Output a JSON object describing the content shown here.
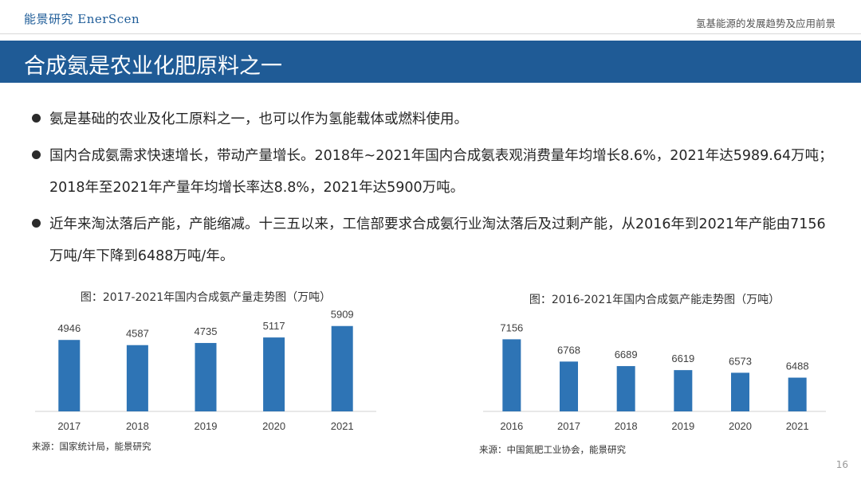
{
  "header": {
    "logo_text": "能景研究 EnerScen",
    "report_title": "氢基能源的发展趋势及应用前景"
  },
  "slide": {
    "title": "合成氨是农业化肥原料之一",
    "bullets": [
      {
        "text": "氨是基础的农业及化工原料之一，也可以作为氢能载体或燃料使用。"
      },
      {
        "text": "国内合成氨需求快速增长，带动产量增长。2018年~2021年国内合成氨表观消费量年均增长8.6%，2021年达5989.64万吨；2018年至2021年产量年均增长率达8.8%，2021年达5900万吨。"
      },
      {
        "text": "近年来淘汰落后产能，产能缩减。十三五以来，工信部要求合成氨行业淘汰落后及过剩产能，从2016年到2021年产能由7156万吨/年下降到6488万吨/年。"
      }
    ],
    "page_number": "16"
  },
  "chart_data": [
    {
      "type": "bar",
      "title": "图：2017-2021年国内合成氨产量走势图（万吨）",
      "categories": [
        "2017",
        "2018",
        "2019",
        "2020",
        "2021"
      ],
      "values": [
        4946,
        4587,
        4735,
        5117,
        5909
      ],
      "ylim": [
        0,
        6500
      ],
      "color": "#2e74b5",
      "source": "来源：国家统计局，能景研究"
    },
    {
      "type": "bar",
      "title": "图：2016-2021年国内合成氨产能走势图（万吨）",
      "categories": [
        "2016",
        "2017",
        "2018",
        "2019",
        "2020",
        "2021"
      ],
      "values": [
        7156,
        6768,
        6689,
        6619,
        6573,
        6488
      ],
      "ylim": [
        5900,
        7300
      ],
      "color": "#2e74b5",
      "source": "来源：中国氮肥工业协会，能景研究"
    }
  ]
}
